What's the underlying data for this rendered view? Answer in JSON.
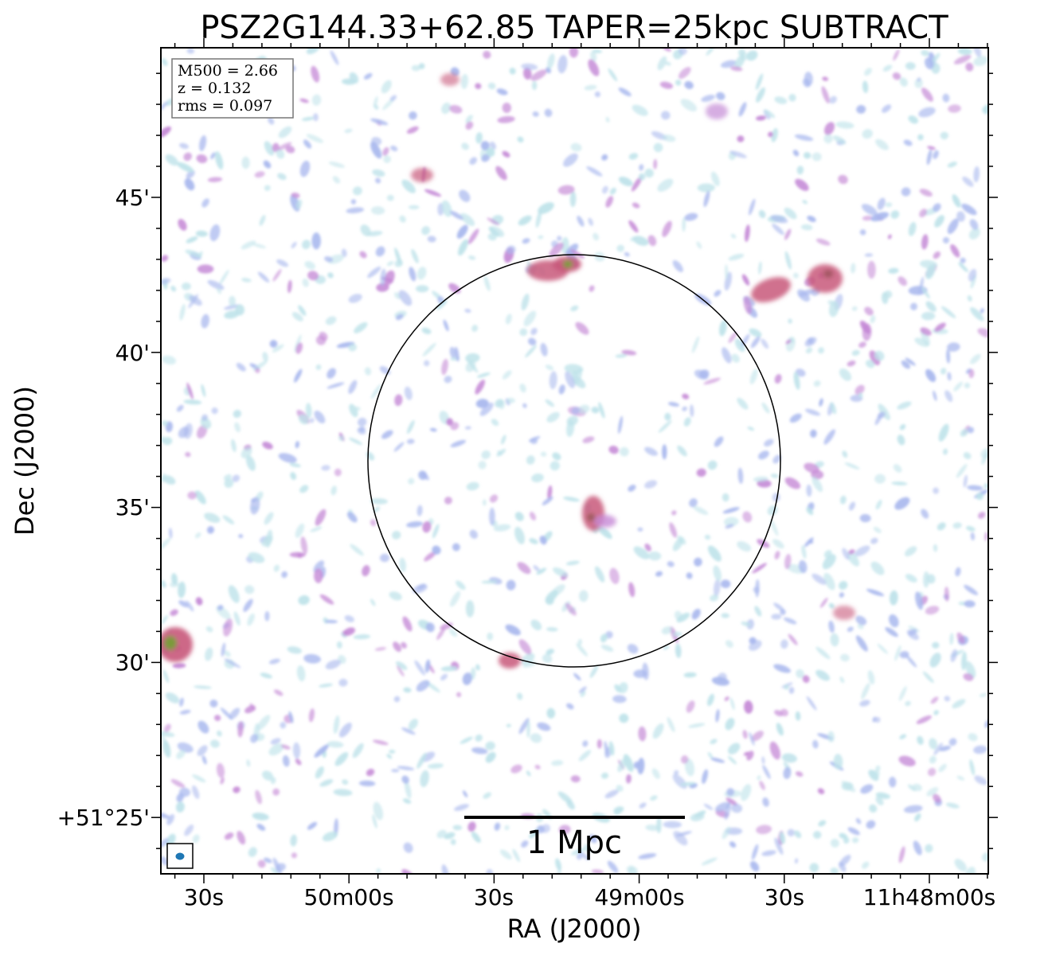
{
  "figure": {
    "title": "PSZ2G144.33+62.85 TAPER=25kpc SUBTRACT",
    "xlabel": "RA (J2000)",
    "ylabel": "Dec (J2000)",
    "x_ticks": [
      "30s",
      "50m00s",
      "30s",
      "49m00s",
      "30s",
      "11h48m00s"
    ],
    "y_ticks": [
      "45'",
      "40'",
      "35'",
      "30'",
      "+51°25'"
    ],
    "info_lines": [
      "M500 = 2.66",
      "z = 0.132",
      "rms = 0.097"
    ],
    "scalebar_label": "1 Mpc",
    "colors": {
      "noise_light": "#bfe3ea",
      "noise_mid": "#a9b8ee",
      "noise_strong": "#c58ad6",
      "source": "#c8587a",
      "source_core": "#7a9a3a",
      "beam": "#1f77b4"
    },
    "sources": [
      {
        "name": "northern-source",
        "ra": "11h49m15s",
        "dec": "+51°42.8'"
      },
      {
        "name": "central-source",
        "ra": "11h49m10s",
        "dec": "+51°34.6'"
      },
      {
        "name": "eastern-pair-source-1",
        "ra": "11h48m36s",
        "dec": "+51°42.0'"
      },
      {
        "name": "eastern-pair-source-2",
        "ra": "11h48m22s",
        "dec": "+51°42.4'"
      },
      {
        "name": "western-edge-source",
        "ra": "11h50m37s",
        "dec": "+51°30.5'"
      },
      {
        "name": "southern-source",
        "ra": "11h49m26s",
        "dec": "+51°30.0'"
      }
    ]
  }
}
